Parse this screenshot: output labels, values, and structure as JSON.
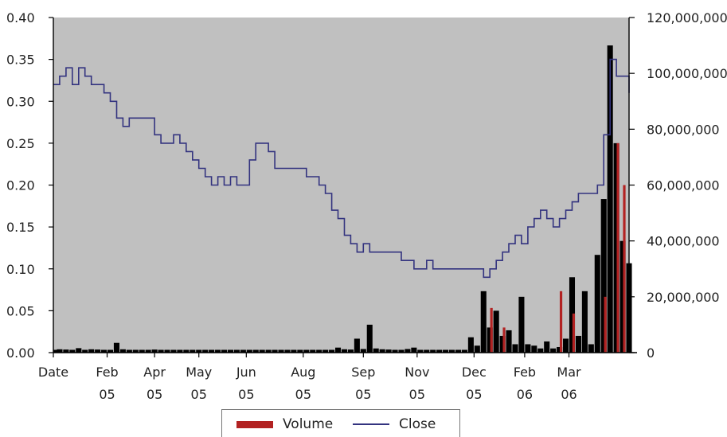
{
  "chart_data": {
    "type": "line+bar",
    "colors": {
      "plot_bg": "#c0c0c0",
      "close_line": "#33337f",
      "volume_primary": "#000000",
      "volume_secondary": "#b22222"
    },
    "y_left": {
      "ylim": [
        0,
        0.4
      ],
      "ticks": [
        "0.00",
        "0.05",
        "0.10",
        "0.15",
        "0.20",
        "0.25",
        "0.30",
        "0.35",
        "0.40"
      ]
    },
    "y_right": {
      "ylim": [
        0,
        120000000
      ],
      "ticks": [
        "0",
        "20,000,000",
        "40,000,000",
        "60,000,000",
        "80,000,000",
        "100,000,000",
        "120,000,000"
      ]
    },
    "x_ticks": [
      {
        "l1": "Date",
        "l2": ""
      },
      {
        "l1": "Feb",
        "l2": "05"
      },
      {
        "l1": "Apr",
        "l2": "05"
      },
      {
        "l1": "May",
        "l2": "05"
      },
      {
        "l1": "Jun",
        "l2": "05"
      },
      {
        "l1": "Aug",
        "l2": "05"
      },
      {
        "l1": "Sep",
        "l2": "05"
      },
      {
        "l1": "Nov",
        "l2": "05"
      },
      {
        "l1": "Dec",
        "l2": "05"
      },
      {
        "l1": "Feb",
        "l2": "06"
      },
      {
        "l1": "Mar",
        "l2": "06"
      }
    ],
    "series": [
      {
        "name": "Close",
        "type": "line",
        "points": [
          [
            0,
            0.32
          ],
          [
            1,
            0.33
          ],
          [
            2,
            0.34
          ],
          [
            3,
            0.32
          ],
          [
            4,
            0.34
          ],
          [
            5,
            0.33
          ],
          [
            6,
            0.32
          ],
          [
            7,
            0.32
          ],
          [
            8,
            0.31
          ],
          [
            9,
            0.3
          ],
          [
            10,
            0.28
          ],
          [
            11,
            0.27
          ],
          [
            12,
            0.28
          ],
          [
            13,
            0.28
          ],
          [
            14,
            0.28
          ],
          [
            15,
            0.28
          ],
          [
            16,
            0.26
          ],
          [
            17,
            0.25
          ],
          [
            18,
            0.25
          ],
          [
            19,
            0.26
          ],
          [
            20,
            0.25
          ],
          [
            21,
            0.24
          ],
          [
            22,
            0.23
          ],
          [
            23,
            0.22
          ],
          [
            24,
            0.21
          ],
          [
            25,
            0.2
          ],
          [
            26,
            0.21
          ],
          [
            27,
            0.2
          ],
          [
            28,
            0.21
          ],
          [
            29,
            0.2
          ],
          [
            30,
            0.2
          ],
          [
            31,
            0.23
          ],
          [
            32,
            0.25
          ],
          [
            33,
            0.25
          ],
          [
            34,
            0.24
          ],
          [
            35,
            0.22
          ],
          [
            36,
            0.22
          ],
          [
            37,
            0.22
          ],
          [
            38,
            0.22
          ],
          [
            39,
            0.22
          ],
          [
            40,
            0.21
          ],
          [
            41,
            0.21
          ],
          [
            42,
            0.2
          ],
          [
            43,
            0.19
          ],
          [
            44,
            0.17
          ],
          [
            45,
            0.16
          ],
          [
            46,
            0.14
          ],
          [
            47,
            0.13
          ],
          [
            48,
            0.12
          ],
          [
            49,
            0.13
          ],
          [
            50,
            0.12
          ],
          [
            51,
            0.12
          ],
          [
            52,
            0.12
          ],
          [
            53,
            0.12
          ],
          [
            54,
            0.12
          ],
          [
            55,
            0.11
          ],
          [
            56,
            0.11
          ],
          [
            57,
            0.1
          ],
          [
            58,
            0.1
          ],
          [
            59,
            0.11
          ],
          [
            60,
            0.1
          ],
          [
            61,
            0.1
          ],
          [
            62,
            0.1
          ],
          [
            63,
            0.1
          ],
          [
            64,
            0.1
          ],
          [
            65,
            0.1
          ],
          [
            66,
            0.1
          ],
          [
            67,
            0.1
          ],
          [
            68,
            0.09
          ],
          [
            69,
            0.1
          ],
          [
            70,
            0.11
          ],
          [
            71,
            0.12
          ],
          [
            72,
            0.13
          ],
          [
            73,
            0.14
          ],
          [
            74,
            0.13
          ],
          [
            75,
            0.15
          ],
          [
            76,
            0.16
          ],
          [
            77,
            0.17
          ],
          [
            78,
            0.16
          ],
          [
            79,
            0.15
          ],
          [
            80,
            0.16
          ],
          [
            81,
            0.17
          ],
          [
            82,
            0.18
          ],
          [
            83,
            0.19
          ],
          [
            84,
            0.19
          ],
          [
            85,
            0.19
          ],
          [
            86,
            0.2
          ],
          [
            87,
            0.26
          ],
          [
            88,
            0.35
          ],
          [
            89,
            0.33
          ],
          [
            90,
            0.33
          ],
          [
            91,
            0.31
          ]
        ],
        "x_tick_positions": [
          0,
          8.5,
          16,
          23,
          30.5,
          39.5,
          49,
          57.5,
          66.5,
          74.5,
          81.5
        ]
      },
      {
        "name": "Volume",
        "type": "bar",
        "values": [
          1000000,
          1200000,
          1100000,
          1000000,
          1600000,
          1000000,
          1200000,
          1100000,
          1000000,
          1000000,
          3500000,
          1200000,
          1000000,
          1000000,
          1000000,
          1000000,
          1100000,
          1000000,
          1000000,
          1000000,
          1000000,
          1000000,
          1000000,
          1000000,
          1000000,
          1000000,
          1000000,
          1000000,
          1000000,
          1000000,
          1000000,
          1000000,
          1000000,
          1000000,
          1000000,
          1000000,
          1000000,
          1000000,
          1000000,
          1000000,
          1000000,
          1000000,
          1000000,
          1000000,
          1000000,
          1800000,
          1200000,
          1100000,
          5000000,
          1300000,
          10000000,
          1500000,
          1200000,
          1100000,
          1000000,
          1000000,
          1300000,
          1800000,
          1000000,
          1000000,
          1000000,
          1000000,
          1000000,
          1000000,
          1000000,
          1000000,
          5500000,
          2500000,
          22000000,
          9000000,
          15000000,
          6000000,
          8000000,
          3000000,
          20000000,
          3000000,
          2500000,
          1500000,
          4000000,
          1500000,
          2000000,
          5000000,
          27000000,
          6000000,
          22000000,
          3000000,
          35000000,
          55000000,
          110000000,
          75000000,
          40000000,
          32000000
        ],
        "secondary_values": [
          0,
          0,
          0,
          0,
          0,
          0,
          0,
          0,
          0,
          0,
          0,
          0,
          0,
          0,
          0,
          0,
          0,
          0,
          0,
          0,
          0,
          0,
          0,
          0,
          0,
          0,
          0,
          0,
          0,
          0,
          0,
          0,
          0,
          0,
          0,
          0,
          0,
          0,
          0,
          0,
          0,
          0,
          0,
          0,
          0,
          0,
          0,
          0,
          0,
          0,
          0,
          0,
          0,
          0,
          0,
          0,
          0,
          0,
          0,
          0,
          0,
          0,
          0,
          0,
          0,
          0,
          0,
          0,
          0,
          16000000,
          0,
          9000000,
          0,
          0,
          0,
          0,
          0,
          0,
          0,
          0,
          22000000,
          0,
          14000000,
          0,
          0,
          0,
          0,
          20000000,
          0,
          75000000,
          60000000,
          0
        ]
      }
    ],
    "legend": [
      {
        "label": "Volume",
        "kind": "bar",
        "color": "#b22222"
      },
      {
        "label": "Close",
        "kind": "line",
        "color": "#33337f"
      }
    ]
  }
}
